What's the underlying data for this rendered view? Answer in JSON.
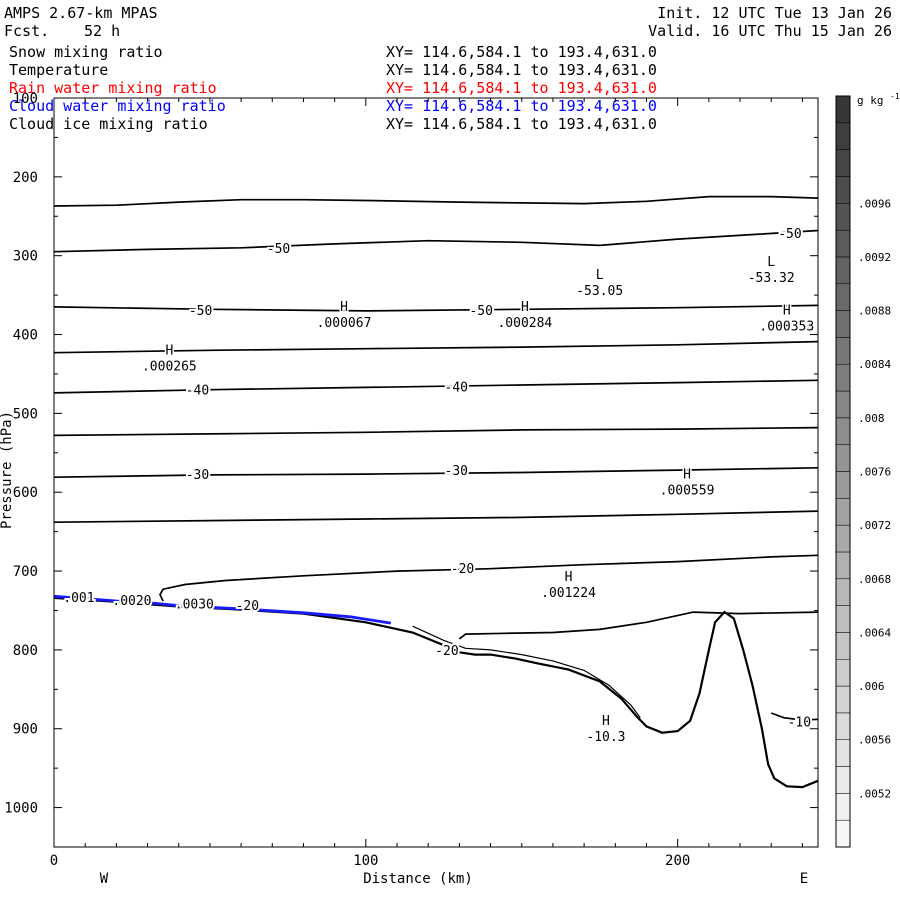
{
  "header": {
    "model": "AMPS 2.67-km MPAS",
    "fcst_label": "Fcst.",
    "fcst_value": "52 h",
    "init": "Init. 12 UTC Tue 13 Jan 26",
    "valid": "Valid. 16 UTC Thu 15 Jan 26"
  },
  "fields": [
    {
      "name": "Snow mixing ratio",
      "xy": "XY= 114.6,584.1 to 193.4,631.0",
      "color": "#000000"
    },
    {
      "name": "Temperature",
      "xy": "XY= 114.6,584.1 to 193.4,631.0",
      "color": "#000000"
    },
    {
      "name": "Rain water mixing ratio",
      "xy": "XY= 114.6,584.1 to 193.4,631.0",
      "color": "#ff0000"
    },
    {
      "name": "Cloud water mixing ratio",
      "xy": "XY= 114.6,584.1 to 193.4,631.0",
      "color": "#0000ff"
    },
    {
      "name": "Cloud ice mixing ratio",
      "xy": "XY= 114.6,584.1 to 193.4,631.0",
      "color": "#000000"
    }
  ],
  "chart_data": {
    "type": "contour-cross-section",
    "xlabel": "Distance (km)",
    "ylabel": "Pressure (hPa)",
    "xlim": [
      0,
      245
    ],
    "ylim": [
      1050,
      100
    ],
    "x_ticks": [
      0,
      100,
      200
    ],
    "y_ticks": [
      100,
      200,
      300,
      400,
      500,
      600,
      700,
      800,
      900,
      1000
    ],
    "direction_left": "W",
    "direction_right": "E",
    "colorbar": {
      "unit": "g kg",
      "unit_exp": "-1",
      "labels": [
        ".0096",
        ".0092",
        ".0088",
        ".0084",
        ".008",
        ".0076",
        ".0072",
        ".0068",
        ".0064",
        ".006",
        ".0056",
        ".0052"
      ],
      "shade_min": 0.0048,
      "shade_max": 0.0104,
      "shade_step": 0.0002
    },
    "temperature_contours": [
      {
        "id": "t-235",
        "points": [
          [
            0,
            237
          ],
          [
            20,
            236
          ],
          [
            40,
            232
          ],
          [
            60,
            229
          ],
          [
            80,
            229
          ],
          [
            100,
            230
          ],
          [
            130,
            232
          ],
          [
            150,
            233
          ],
          [
            170,
            234
          ],
          [
            190,
            231
          ],
          [
            210,
            225
          ],
          [
            230,
            225
          ],
          [
            245,
            227
          ]
        ]
      },
      {
        "id": "t-295",
        "points": [
          [
            0,
            295
          ],
          [
            30,
            292
          ],
          [
            60,
            290
          ],
          [
            90,
            285
          ],
          [
            120,
            281
          ],
          [
            150,
            283
          ],
          [
            175,
            287
          ],
          [
            200,
            279
          ],
          [
            225,
            273
          ],
          [
            245,
            268
          ]
        ]
      },
      {
        "id": "t-365",
        "points": [
          [
            0,
            365
          ],
          [
            50,
            368
          ],
          [
            100,
            370
          ],
          [
            150,
            368
          ],
          [
            200,
            366
          ],
          [
            245,
            363
          ]
        ]
      },
      {
        "id": "t-423",
        "points": [
          [
            0,
            423
          ],
          [
            50,
            420
          ],
          [
            100,
            418
          ],
          [
            150,
            416
          ],
          [
            200,
            413
          ],
          [
            245,
            409
          ]
        ]
      },
      {
        "id": "t-473",
        "points": [
          [
            0,
            474
          ],
          [
            50,
            470
          ],
          [
            100,
            467
          ],
          [
            150,
            464
          ],
          [
            200,
            461
          ],
          [
            245,
            458
          ]
        ]
      },
      {
        "id": "t-525",
        "points": [
          [
            0,
            528
          ],
          [
            50,
            526
          ],
          [
            100,
            524
          ],
          [
            150,
            521
          ],
          [
            200,
            520
          ],
          [
            245,
            518
          ]
        ]
      },
      {
        "id": "t-580",
        "points": [
          [
            0,
            581
          ],
          [
            50,
            578
          ],
          [
            100,
            577
          ],
          [
            150,
            575
          ],
          [
            200,
            572
          ],
          [
            245,
            569
          ]
        ]
      },
      {
        "id": "t-636",
        "points": [
          [
            0,
            638
          ],
          [
            50,
            636
          ],
          [
            100,
            634
          ],
          [
            150,
            632
          ],
          [
            200,
            628
          ],
          [
            245,
            624
          ]
        ]
      },
      {
        "id": "t-700",
        "points": [
          [
            35,
            738
          ],
          [
            34,
            730
          ],
          [
            35,
            723
          ],
          [
            42,
            717
          ],
          [
            55,
            712
          ],
          [
            80,
            706
          ],
          [
            110,
            700
          ],
          [
            140,
            697
          ],
          [
            170,
            692
          ],
          [
            200,
            688
          ],
          [
            230,
            682
          ],
          [
            245,
            680
          ]
        ]
      },
      {
        "id": "t-780",
        "points": [
          [
            130,
            786
          ],
          [
            132,
            780
          ],
          [
            145,
            779
          ],
          [
            160,
            778
          ],
          [
            175,
            774
          ],
          [
            190,
            765
          ],
          [
            205,
            752
          ],
          [
            220,
            754
          ],
          [
            245,
            752
          ]
        ]
      },
      {
        "id": "t-880",
        "points": [
          [
            230,
            880
          ],
          [
            234,
            886
          ],
          [
            240,
            889
          ],
          [
            245,
            888
          ]
        ]
      }
    ],
    "terrain_profile": [
      [
        0,
        734
      ],
      [
        20,
        739
      ],
      [
        40,
        745
      ],
      [
        60,
        749
      ],
      [
        80,
        754
      ],
      [
        100,
        765
      ],
      [
        115,
        778
      ],
      [
        125,
        794
      ],
      [
        130,
        803
      ],
      [
        135,
        806
      ],
      [
        140,
        806
      ],
      [
        148,
        811
      ],
      [
        155,
        817
      ],
      [
        165,
        825
      ],
      [
        175,
        840
      ],
      [
        182,
        862
      ],
      [
        187,
        885
      ],
      [
        190,
        897
      ],
      [
        195,
        905
      ],
      [
        200,
        903
      ],
      [
        204,
        890
      ],
      [
        207,
        855
      ],
      [
        210,
        800
      ],
      [
        212,
        765
      ],
      [
        215,
        752
      ],
      [
        218,
        760
      ],
      [
        221,
        800
      ],
      [
        224,
        845
      ],
      [
        227,
        900
      ],
      [
        229,
        945
      ],
      [
        231,
        963
      ],
      [
        235,
        973
      ],
      [
        240,
        974
      ],
      [
        245,
        966
      ]
    ],
    "terrain_parallel_contour": [
      [
        115,
        770
      ],
      [
        125,
        788
      ],
      [
        132,
        798
      ],
      [
        140,
        800
      ],
      [
        150,
        806
      ],
      [
        160,
        814
      ],
      [
        170,
        826
      ],
      [
        178,
        845
      ],
      [
        185,
        870
      ],
      [
        188,
        886
      ]
    ],
    "cloud_water_segment": [
      [
        0,
        732
      ],
      [
        10,
        735
      ],
      [
        20,
        738
      ],
      [
        30,
        740
      ],
      [
        40,
        744
      ],
      [
        60,
        748
      ],
      [
        80,
        753
      ],
      [
        95,
        758
      ],
      [
        108,
        766
      ]
    ],
    "contour_labels": [
      {
        "x": 72,
        "p": 290,
        "text": "-50"
      },
      {
        "x": 236,
        "p": 271,
        "text": "-50"
      },
      {
        "x": 47,
        "p": 369,
        "text": "-50"
      },
      {
        "x": 137,
        "p": 369,
        "text": "-50"
      },
      {
        "x": 46,
        "p": 470,
        "text": "-40"
      },
      {
        "x": 129,
        "p": 466,
        "text": "-40"
      },
      {
        "x": 46,
        "p": 577,
        "text": "-30"
      },
      {
        "x": 129,
        "p": 572,
        "text": "-30"
      },
      {
        "x": 131,
        "p": 696,
        "text": "-20"
      },
      {
        "x": 62,
        "p": 743,
        "text": "-20"
      },
      {
        "x": 126,
        "p": 800,
        "text": "-20"
      },
      {
        "x": 239,
        "p": 891,
        "text": "-10"
      },
      {
        "x": 8,
        "p": 733,
        "text": ".001"
      },
      {
        "x": 25,
        "p": 737,
        "text": ".0020"
      },
      {
        "x": 45,
        "p": 741,
        "text": ".0030"
      }
    ],
    "extrema": [
      {
        "type": "H",
        "x": 93,
        "p": 364,
        "value": ".000067"
      },
      {
        "type": "H",
        "x": 151,
        "p": 364,
        "value": ".000284"
      },
      {
        "type": "H",
        "x": 235,
        "p": 368,
        "value": ".000353"
      },
      {
        "type": "H",
        "x": 37,
        "p": 419,
        "value": ".000265"
      },
      {
        "type": "L",
        "x": 175,
        "p": 323,
        "value": "-53.05"
      },
      {
        "type": "L",
        "x": 230,
        "p": 307,
        "value": "-53.32"
      },
      {
        "type": "H",
        "x": 203,
        "p": 576,
        "value": ".000559"
      },
      {
        "type": "H",
        "x": 165,
        "p": 706,
        "value": ".001224"
      },
      {
        "type": "H",
        "x": 177,
        "p": 889,
        "value": "-10.3"
      }
    ]
  }
}
